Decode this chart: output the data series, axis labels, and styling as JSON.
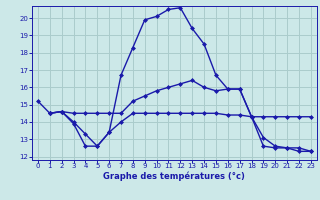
{
  "xlabel": "Graphe des températures (°c)",
  "bg_color": "#cce8e8",
  "grid_color": "#aacccc",
  "line_color": "#1a1aaa",
  "xlim": [
    -0.5,
    23.5
  ],
  "ylim": [
    11.8,
    20.7
  ],
  "x_ticks": [
    0,
    1,
    2,
    3,
    4,
    5,
    6,
    7,
    8,
    9,
    10,
    11,
    12,
    13,
    14,
    15,
    16,
    17,
    18,
    19,
    20,
    21,
    22,
    23
  ],
  "y_ticks": [
    12,
    13,
    14,
    15,
    16,
    17,
    18,
    19,
    20
  ],
  "line1_x": [
    0,
    1,
    2,
    3,
    4,
    5,
    6,
    7,
    8,
    9,
    10,
    11,
    12,
    13,
    14,
    15,
    16,
    17,
    18,
    19,
    20,
    21,
    22,
    23
  ],
  "line1_y": [
    15.2,
    14.5,
    14.6,
    13.9,
    12.6,
    12.6,
    13.4,
    16.7,
    18.3,
    19.9,
    20.1,
    20.5,
    20.6,
    19.4,
    18.5,
    16.7,
    15.9,
    15.9,
    14.3,
    13.1,
    12.6,
    12.5,
    12.3,
    12.3
  ],
  "line2_x": [
    1,
    2,
    3,
    4,
    5,
    6,
    7,
    8,
    9,
    10,
    11,
    12,
    13,
    14,
    15,
    16,
    17,
    18,
    19,
    20,
    21,
    22,
    23
  ],
  "line2_y": [
    14.5,
    14.6,
    14.5,
    14.5,
    14.5,
    14.5,
    14.5,
    15.2,
    15.5,
    15.8,
    16.0,
    16.2,
    16.4,
    16.0,
    15.8,
    15.9,
    15.9,
    14.3,
    12.6,
    12.5,
    12.5,
    12.5,
    12.3
  ],
  "line3_x": [
    1,
    2,
    3,
    4,
    5,
    6,
    7,
    8,
    9,
    10,
    11,
    12,
    13,
    14,
    15,
    16,
    17,
    18,
    19,
    20,
    21,
    22,
    23
  ],
  "line3_y": [
    14.5,
    14.6,
    14.0,
    13.3,
    12.6,
    13.4,
    14.0,
    14.5,
    14.5,
    14.5,
    14.5,
    14.5,
    14.5,
    14.5,
    14.5,
    14.4,
    14.4,
    14.3,
    14.3,
    14.3,
    14.3,
    14.3,
    14.3
  ]
}
